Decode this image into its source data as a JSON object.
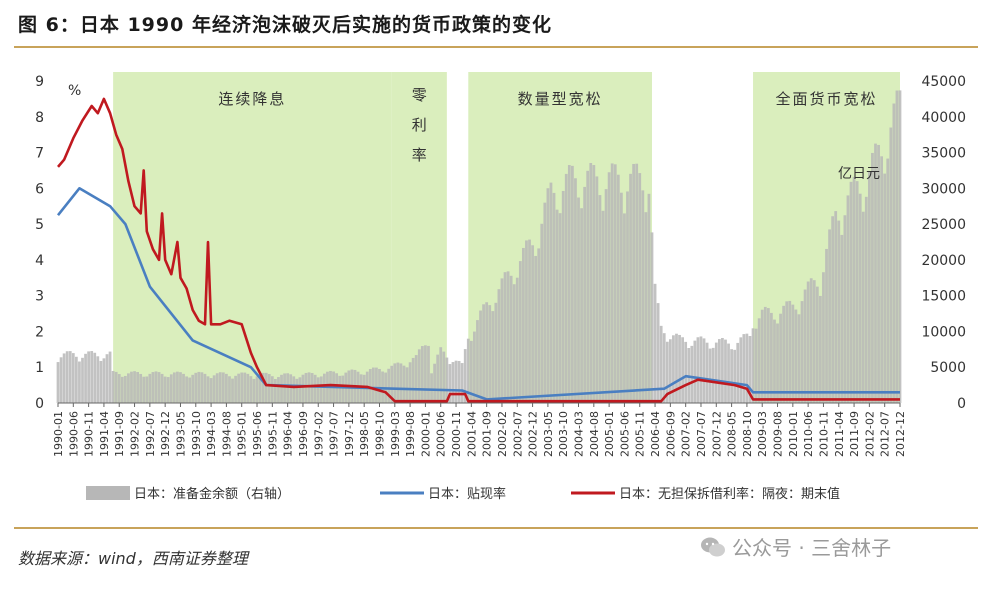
{
  "title": "图 6：日本 1990 年经济泡沫破灭后实施的货币政策的变化",
  "source": "数据来源：wind，西南证券整理",
  "watermark": "公众号 · 三舍林子",
  "chart_data": {
    "type": "bar+line",
    "left_unit": "%",
    "right_unit": "亿日元",
    "left_axis": {
      "min": 0,
      "max": 9,
      "ticks": [
        0,
        1,
        2,
        3,
        4,
        5,
        6,
        7,
        8,
        9
      ]
    },
    "right_axis": {
      "min": 0,
      "max": 45000,
      "ticks": [
        "0",
        "5000",
        "10000",
        "15000",
        "20000",
        "25000",
        "30000",
        "35000",
        "40000",
        "45000"
      ]
    },
    "x_ticks": [
      "1990-01",
      "1990-06",
      "1990-11",
      "1991-04",
      "1991-09",
      "1992-02",
      "1992-07",
      "1992-12",
      "1993-05",
      "1993-10",
      "1994-03",
      "1994-08",
      "1995-01",
      "1995-06",
      "1995-11",
      "1996-04",
      "1996-09",
      "1997-02",
      "1997-07",
      "1997-12",
      "1998-05",
      "1998-10",
      "1999-03",
      "1999-08",
      "2000-01",
      "2000-06",
      "2000-11",
      "2001-04",
      "2001-09",
      "2002-02",
      "2002-07",
      "2002-12",
      "2003-05",
      "2003-10",
      "2004-03",
      "2004-08",
      "2005-01",
      "2005-06",
      "2005-11",
      "2006-04",
      "2006-09",
      "2007-02",
      "2007-07",
      "2007-12",
      "2008-05",
      "2008-10",
      "2009-03",
      "2009-08",
      "2010-01",
      "2010-06",
      "2010-11",
      "2011-04",
      "2011-09",
      "2012-02",
      "2012-07",
      "2012-12"
    ],
    "shaded_periods": [
      {
        "label": "连续降息",
        "start": "1991-07",
        "end": "1999-02"
      },
      {
        "label": "零利率",
        "start": "1999-02",
        "end": "2000-08"
      },
      {
        "label": "数量型宽松",
        "start": "2001-03",
        "end": "2006-03"
      },
      {
        "label": "全面货币宽松",
        "start": "2008-12",
        "end": "2012-12"
      }
    ],
    "series": [
      {
        "name": "日本：准备金余额（右轴）",
        "axis": "right",
        "kind": "bar",
        "color": "#b7b7b7",
        "points": [
          [
            "1990-01",
            6500
          ],
          [
            "1991-06",
            6500
          ],
          [
            "1991-07",
            4000
          ],
          [
            "1995-06",
            3800
          ],
          [
            "1996-06",
            3700
          ],
          [
            "1998-06",
            4300
          ],
          [
            "1999-02",
            4800
          ],
          [
            "1999-10",
            6000
          ],
          [
            "2000-06",
            7000
          ],
          [
            "2000-02",
            9000
          ],
          [
            "2000-03",
            4200
          ],
          [
            "2001-01",
            5000
          ],
          [
            "2001-03",
            9000
          ],
          [
            "2001-09",
            13000
          ],
          [
            "2002-06",
            18000
          ],
          [
            "2003-01",
            22000
          ],
          [
            "2003-06",
            28000
          ],
          [
            "2004-01",
            30000
          ],
          [
            "2005-01",
            30000
          ],
          [
            "2006-02",
            30000
          ],
          [
            "2006-04",
            15000
          ],
          [
            "2006-06",
            10000
          ],
          [
            "2006-12",
            8500
          ],
          [
            "2008-06",
            8000
          ],
          [
            "2008-11",
            9000
          ],
          [
            "2008-12",
            11000
          ],
          [
            "2009-03",
            12000
          ],
          [
            "2009-06",
            12000
          ],
          [
            "2010-01",
            13000
          ],
          [
            "2010-10",
            17000
          ],
          [
            "2011-03",
            25000
          ],
          [
            "2011-06",
            27000
          ],
          [
            "2012-01",
            30000
          ],
          [
            "2012-06",
            34000
          ],
          [
            "2012-12",
            40000
          ]
        ]
      },
      {
        "name": "日本：贴现率",
        "axis": "left",
        "kind": "line",
        "color": "#4a7fc1",
        "points": [
          [
            "1990-01",
            5.25
          ],
          [
            "1990-08",
            6.0
          ],
          [
            "1991-06",
            5.5
          ],
          [
            "1991-11",
            5.0
          ],
          [
            "1992-07",
            3.25
          ],
          [
            "1993-09",
            1.75
          ],
          [
            "1995-04",
            1.0
          ],
          [
            "1995-09",
            0.5
          ],
          [
            "2001-01",
            0.35
          ],
          [
            "2001-09",
            0.1
          ],
          [
            "2006-07",
            0.4
          ],
          [
            "2007-02",
            0.75
          ],
          [
            "2008-10",
            0.5
          ],
          [
            "2008-12",
            0.3
          ],
          [
            "2012-12",
            0.3
          ]
        ]
      },
      {
        "name": "日本：无担保拆借利率：隔夜：期末值",
        "axis": "left",
        "kind": "line",
        "color": "#c0191f",
        "points": [
          [
            "1990-01",
            6.6
          ],
          [
            "1990-03",
            6.8
          ],
          [
            "1990-06",
            7.4
          ],
          [
            "1990-09",
            7.9
          ],
          [
            "1990-12",
            8.3
          ],
          [
            "1991-02",
            8.1
          ],
          [
            "1991-04",
            8.5
          ],
          [
            "1991-06",
            8.1
          ],
          [
            "1991-08",
            7.5
          ],
          [
            "1991-10",
            7.1
          ],
          [
            "1991-12",
            6.2
          ],
          [
            "1992-02",
            5.5
          ],
          [
            "1992-04",
            5.3
          ],
          [
            "1992-05",
            6.5
          ],
          [
            "1992-06",
            4.8
          ],
          [
            "1992-08",
            4.3
          ],
          [
            "1992-10",
            4.0
          ],
          [
            "1992-11",
            5.3
          ],
          [
            "1992-12",
            4.0
          ],
          [
            "1993-02",
            3.6
          ],
          [
            "1993-04",
            4.5
          ],
          [
            "1993-05",
            3.5
          ],
          [
            "1993-07",
            3.2
          ],
          [
            "1993-09",
            2.6
          ],
          [
            "1993-11",
            2.3
          ],
          [
            "1994-01",
            2.2
          ],
          [
            "1994-02",
            4.5
          ],
          [
            "1994-03",
            2.2
          ],
          [
            "1994-06",
            2.2
          ],
          [
            "1994-09",
            2.3
          ],
          [
            "1995-01",
            2.2
          ],
          [
            "1995-04",
            1.4
          ],
          [
            "1995-06",
            1.0
          ],
          [
            "1995-09",
            0.5
          ],
          [
            "1996-06",
            0.45
          ],
          [
            "1997-06",
            0.5
          ],
          [
            "1998-06",
            0.45
          ],
          [
            "1998-12",
            0.3
          ],
          [
            "1999-03",
            0.05
          ],
          [
            "2000-08",
            0.05
          ],
          [
            "2000-09",
            0.25
          ],
          [
            "2001-02",
            0.25
          ],
          [
            "2001-03",
            0.05
          ],
          [
            "2006-06",
            0.05
          ],
          [
            "2006-08",
            0.25
          ],
          [
            "2007-02",
            0.5
          ],
          [
            "2007-06",
            0.65
          ],
          [
            "2008-06",
            0.5
          ],
          [
            "2008-10",
            0.4
          ],
          [
            "2008-12",
            0.1
          ],
          [
            "2012-12",
            0.1
          ]
        ]
      }
    ]
  }
}
